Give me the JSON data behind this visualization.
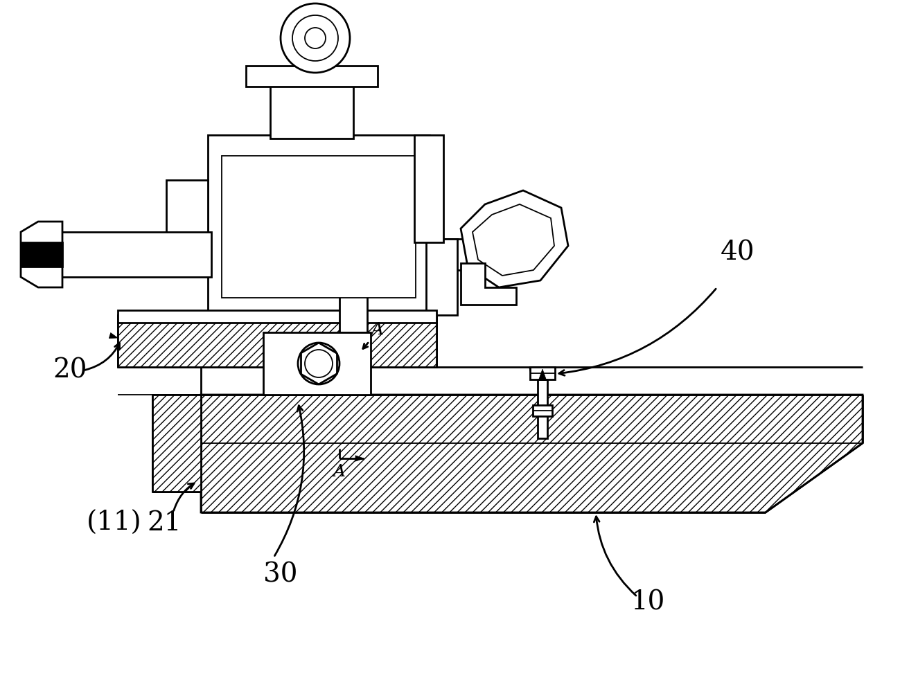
{
  "bg_color": "#ffffff",
  "lc": "#000000",
  "lw": 2.0,
  "lw_thin": 1.3,
  "fs": 28
}
